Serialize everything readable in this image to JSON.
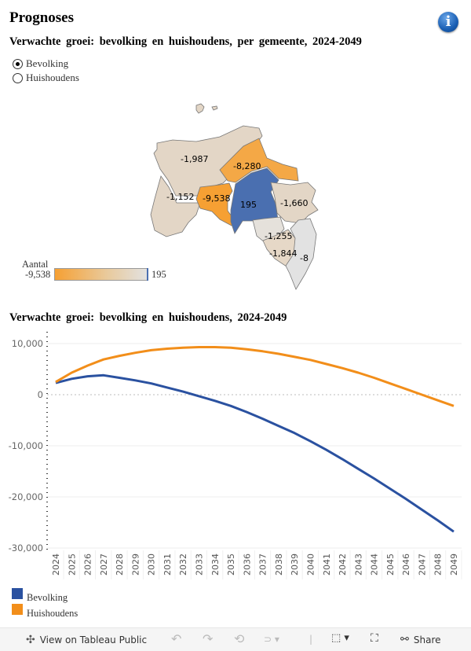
{
  "header": {
    "title": "Prognoses",
    "info_icon": "info-icon"
  },
  "map_section": {
    "subtitle": "Verwachte groei: bevolking en huishoudens, per gemeente, 2024-2049",
    "radio_options": [
      {
        "label": "Bevolking",
        "selected": true
      },
      {
        "label": "Huishoudens",
        "selected": false
      }
    ],
    "legend": {
      "title": "Aantal",
      "min_label": "-9,538",
      "max_label": "195",
      "colors": {
        "low": "#f6a033",
        "mid": "#e9c99a",
        "high": "#e2e2e2",
        "positive": "#4a6fb0"
      }
    },
    "regions": [
      {
        "label": "-1,987",
        "value": -1987,
        "color": "#e3d6c6"
      },
      {
        "label": "-8,280",
        "value": -8280,
        "color": "#f4a846"
      },
      {
        "label": "-1,152",
        "value": -1152,
        "color": "#e3d6c6"
      },
      {
        "label": "-9,538",
        "value": -9538,
        "color": "#f6a033"
      },
      {
        "label": "195",
        "value": 195,
        "color": "#4a6fb0"
      },
      {
        "label": "-1,660",
        "value": -1660,
        "color": "#e3d6c6"
      },
      {
        "label": "-1,255",
        "value": -1255,
        "color": "#e5e1db"
      },
      {
        "label": "-1,844",
        "value": -1844,
        "color": "#e6d8c7"
      },
      {
        "label": "-8",
        "value": -8,
        "color": "#e2e2e2"
      }
    ]
  },
  "chart_section": {
    "subtitle": "Verwachte groei: bevolking en huishoudens, 2024-2049"
  },
  "chart_data": {
    "type": "line",
    "title": "Verwachte groei: bevolking en huishoudens, 2024-2049",
    "xlabel": "",
    "ylabel": "",
    "x": [
      "2024",
      "2025",
      "2026",
      "2027",
      "2028",
      "2029",
      "2030",
      "2031",
      "2032",
      "2033",
      "2034",
      "2035",
      "2036",
      "2037",
      "2038",
      "2039",
      "2040",
      "2041",
      "2042",
      "2043",
      "2044",
      "2045",
      "2046",
      "2047",
      "2048",
      "2049"
    ],
    "y_ticks": [
      10000,
      0,
      -10000,
      -20000,
      -30000
    ],
    "y_tick_labels": [
      "10,000",
      "0",
      "-10,000",
      "-20,000",
      "-30,000"
    ],
    "ylim": [
      -30000,
      10000
    ],
    "grid": true,
    "legend_position": "bottom-left",
    "series": [
      {
        "name": "Bevolking",
        "color": "#2a51a0",
        "values": [
          2300,
          3100,
          3600,
          3800,
          3300,
          2800,
          2200,
          1400,
          600,
          -300,
          -1200,
          -2200,
          -3400,
          -4700,
          -6100,
          -7500,
          -9100,
          -10800,
          -12600,
          -14500,
          -16400,
          -18400,
          -20400,
          -22500,
          -24600,
          -26800
        ]
      },
      {
        "name": "Huishoudens",
        "color": "#f28e1a",
        "values": [
          2500,
          4300,
          5700,
          6900,
          7600,
          8200,
          8700,
          9000,
          9200,
          9300,
          9300,
          9200,
          8900,
          8500,
          8000,
          7400,
          6800,
          6000,
          5200,
          4300,
          3300,
          2200,
          1100,
          0,
          -1100,
          -2200
        ]
      }
    ]
  },
  "footer": {
    "view_label": "View on Tableau Public",
    "share_label": "Share"
  }
}
